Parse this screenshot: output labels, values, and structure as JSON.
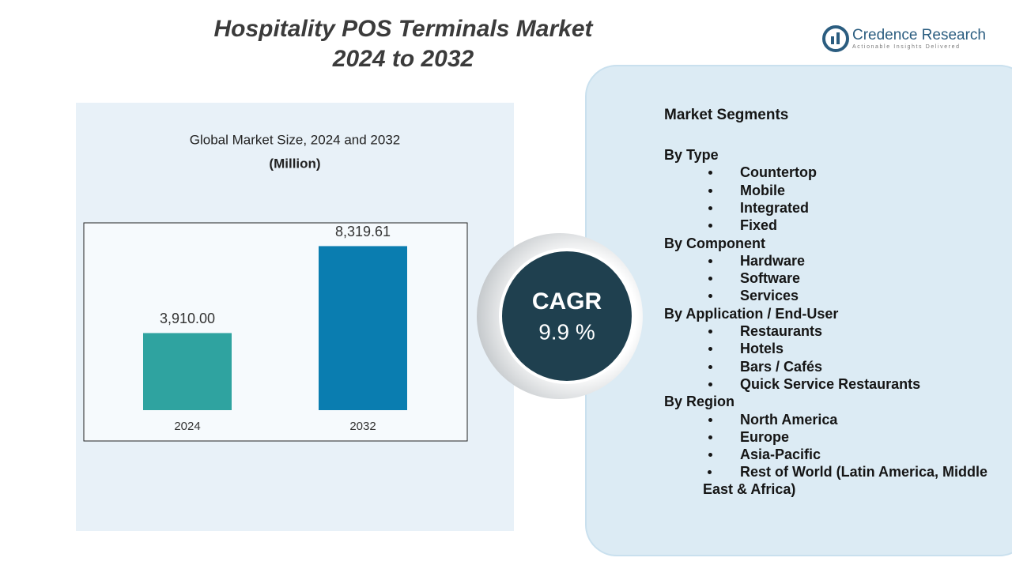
{
  "header": {
    "title_lines": [
      "Hospitality POS Terminals Market",
      "2024 to 2032"
    ]
  },
  "logo": {
    "name": "Credence Research",
    "tagline": "Actionable Insights Delivered"
  },
  "chart_data": {
    "type": "bar",
    "title": "Global Market Size, 2024 and 2032",
    "subtitle": "(Million)",
    "categories": [
      "2024",
      "2032"
    ],
    "values": [
      3910.0,
      8319.61
    ],
    "value_labels": [
      "3,910.00",
      "8,319.61"
    ],
    "colors": [
      "#2fa3a0",
      "#0a7db0"
    ],
    "ylim": [
      0,
      9500
    ]
  },
  "cagr": {
    "label": "CAGR",
    "value": "9.9 %"
  },
  "segments": {
    "title": "Market Segments",
    "groups": [
      {
        "name": "By Type",
        "items": [
          "Countertop",
          "Mobile",
          "Integrated",
          "Fixed"
        ]
      },
      {
        "name": "By Component",
        "items": [
          "Hardware",
          "Software",
          "Services"
        ]
      },
      {
        "name": "By Application / End-User",
        "items": [
          "Restaurants",
          "Hotels",
          "Bars / Cafés",
          "Quick Service Restaurants"
        ]
      },
      {
        "name": "By Region",
        "items": [
          "North America",
          "Europe",
          "Asia-Pacific",
          "Rest of World (Latin America, Middle East & Africa)"
        ]
      }
    ]
  }
}
